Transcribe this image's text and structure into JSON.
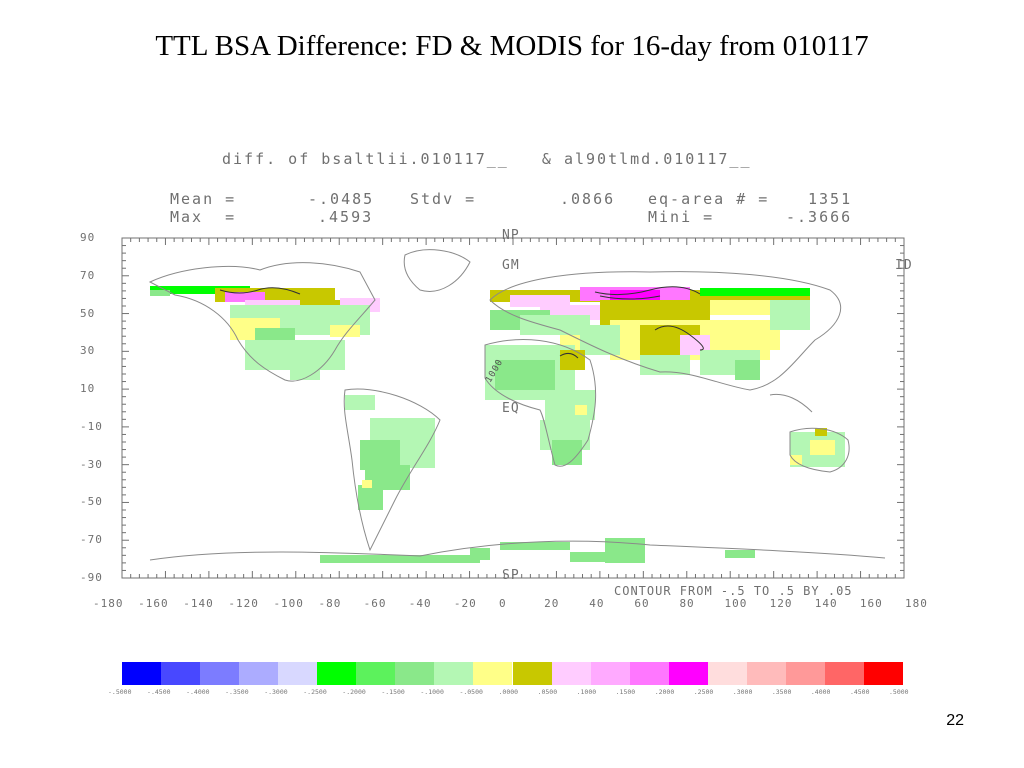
{
  "slide": {
    "title": "TTL BSA Difference: FD & MODIS for 16-day from 010117",
    "page_number": "22"
  },
  "plot": {
    "header": "diff. of bsaltlii.010117__   & al90tlmd.010117__",
    "mean_label": "Mean =",
    "mean_value": "-.0485",
    "stdv_label": "Stdv =",
    "stdv_value": ".0866",
    "eqarea_label": "eq-area # =",
    "eqarea_value": "1351",
    "max_label": "Max  =",
    "max_value": ".4593",
    "min_label": "Mini =",
    "min_value": "-.3666",
    "contour_note": "CONTOUR FROM -.5 TO .5 BY .05",
    "labels": {
      "np": "NP",
      "gm": "GM",
      "eq": "EQ",
      "sp": "SP",
      "id": "ID",
      "contour_1000": "1000"
    }
  },
  "map_data": {
    "lat_ticks": [
      "90",
      "70",
      "50",
      "30",
      "10",
      "-10",
      "-30",
      "-50",
      "-70",
      "-90"
    ],
    "lon_ticks": [
      "-180",
      "-160",
      "-140",
      "-120",
      "-100",
      "-80",
      "-60",
      "-40",
      "-20",
      "0",
      "20",
      "40",
      "60",
      "80",
      "100",
      "120",
      "140",
      "160",
      "180"
    ],
    "colors": {
      "axis": "#707070",
      "coast": "#8a8a8a"
    }
  },
  "colorbar": {
    "colors": [
      "#0000ff",
      "#4848ff",
      "#7c7cff",
      "#acacff",
      "#d8d8ff",
      "#00ff00",
      "#5cf25c",
      "#8ae88a",
      "#b4f7b4",
      "#ffff88",
      "#c8c800",
      "#ffccff",
      "#ffaaff",
      "#ff77ff",
      "#ff00ff",
      "#ffdddd",
      "#ffbbbb",
      "#ff9999",
      "#ff6666",
      "#ff0000"
    ],
    "labels": [
      "-.5000",
      "-.4500",
      "-.4000",
      "-.3500",
      "-.3000",
      "-.2500",
      "-.2000",
      "-.1500",
      "-.1000",
      "-.0500",
      ".0000",
      ".0500",
      ".1000",
      ".1500",
      ".2000",
      ".2500",
      ".3000",
      ".3500",
      ".4000",
      ".4500",
      ".5000"
    ]
  }
}
